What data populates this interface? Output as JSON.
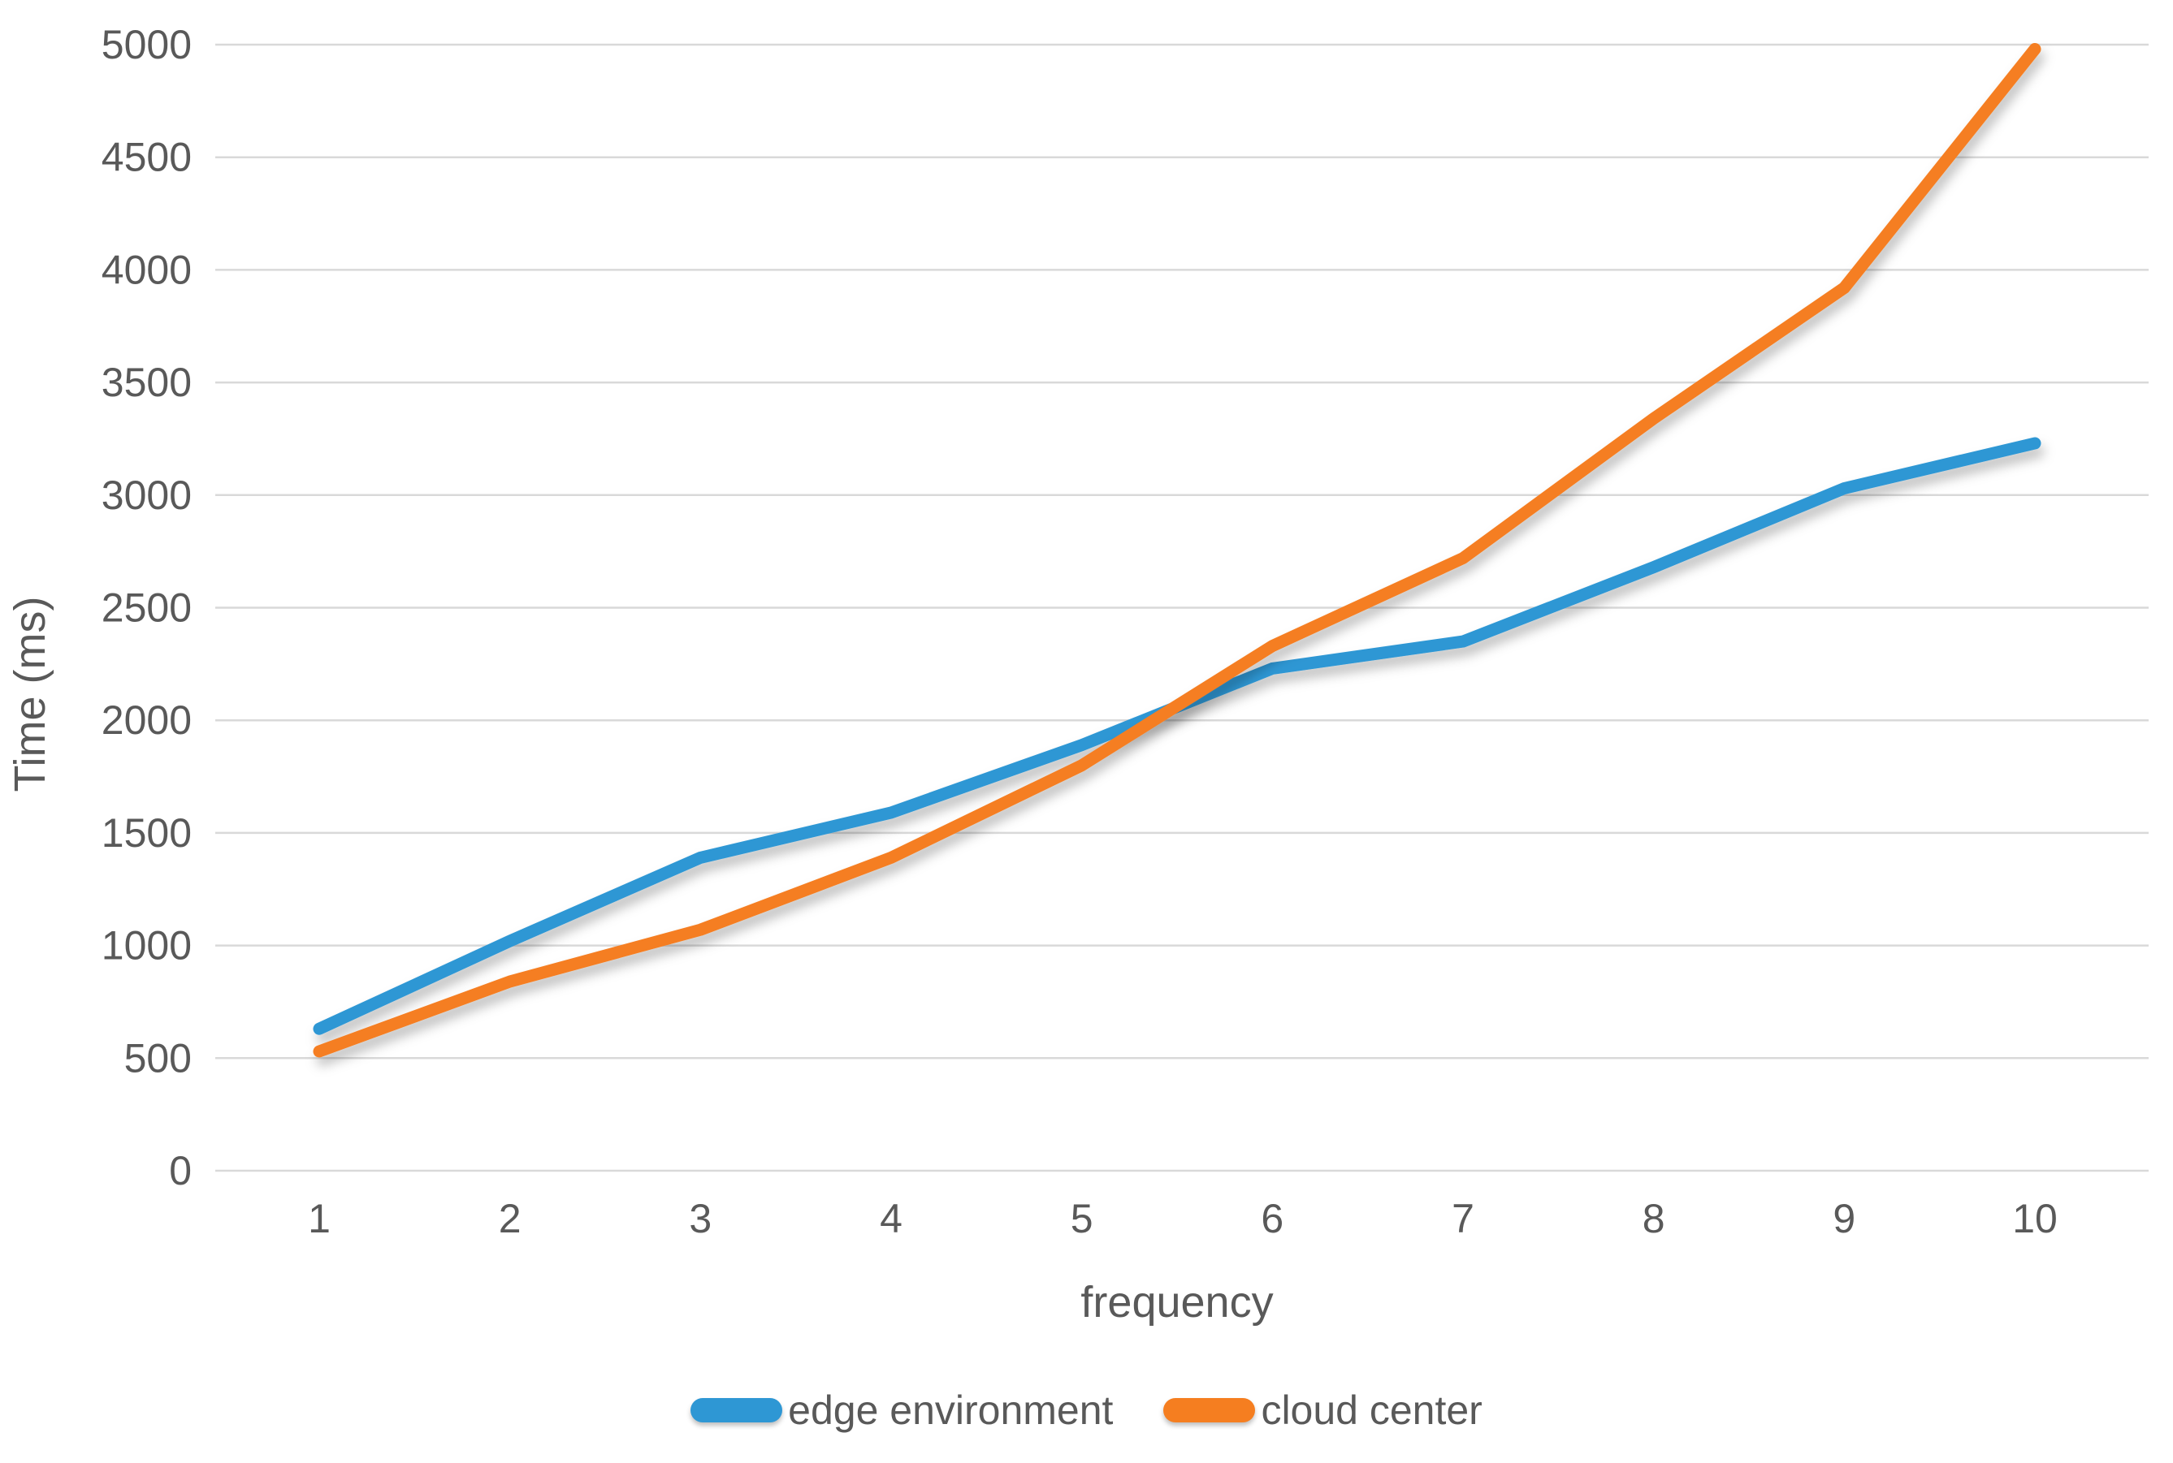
{
  "figure": {
    "background": "#ffffff",
    "text_color": "#595959",
    "gridline_color": "#D9D9D9"
  },
  "chart_data": {
    "type": "line",
    "title": "",
    "xlabel": "frequency",
    "ylabel": "Time (ms)",
    "x": [
      1,
      2,
      3,
      4,
      5,
      6,
      7,
      8,
      9,
      10
    ],
    "x_tick_labels": [
      "1",
      "2",
      "3",
      "4",
      "5",
      "6",
      "7",
      "8",
      "9",
      "10"
    ],
    "ylim": [
      0,
      5000
    ],
    "y_tick_interval": 500,
    "y_tick_labels": [
      "0",
      "500",
      "1000",
      "1500",
      "2000",
      "2500",
      "3000",
      "3500",
      "4000",
      "4500",
      "5000"
    ],
    "grid": "horizontal",
    "legend_position": "bottom",
    "series": [
      {
        "name": "edge environment",
        "color": "#2E97D4",
        "values": [
          630,
          1020,
          1390,
          1590,
          1890,
          2230,
          2350,
          2680,
          3030,
          3230
        ]
      },
      {
        "name": "cloud center",
        "color": "#F57E20",
        "values": [
          530,
          840,
          1070,
          1390,
          1800,
          2330,
          2720,
          3340,
          3920,
          4980
        ]
      }
    ]
  }
}
